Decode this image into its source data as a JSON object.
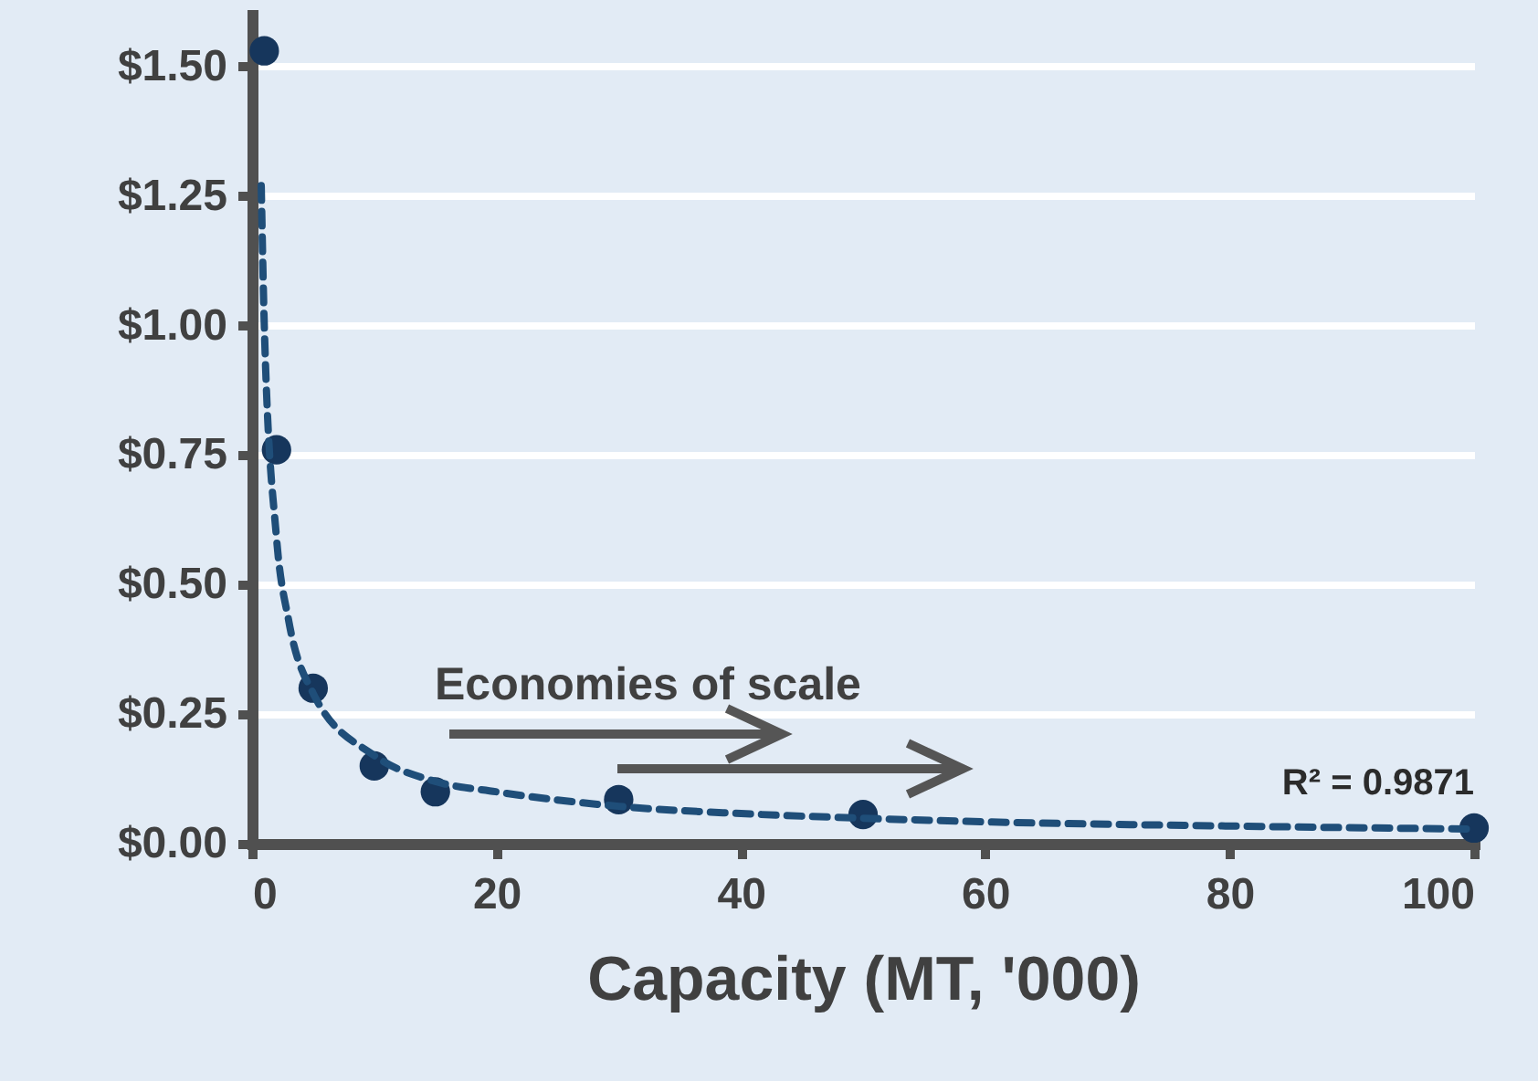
{
  "chart_data": {
    "type": "scatter",
    "xlabel": "Capacity (MT, '000)",
    "marker": "circle",
    "grid": "y",
    "xlim": [
      0,
      100
    ],
    "xticks": [
      0,
      20,
      40,
      60,
      80,
      100
    ],
    "ylim": [
      0,
      1.6
    ],
    "yticks": [
      {
        "value": 0,
        "label": "$0.00"
      },
      {
        "value": 0.25,
        "label": "$0.25"
      },
      {
        "value": 0.5,
        "label": "$0.50"
      },
      {
        "value": 0.75,
        "label": "$0.75"
      },
      {
        "value": 1,
        "label": "$1.00"
      },
      {
        "value": 1.25,
        "label": "$1.25"
      },
      {
        "value": 1.5,
        "label": "$1.50"
      }
    ],
    "x": [
      1,
      2,
      5,
      10,
      15,
      30,
      50,
      100
    ],
    "annotations": [
      "Economies of scale",
      "R² = 0.9871"
    ],
    "series": [
      {
        "color": "#16365c",
        "values": [
          1.53,
          0.76,
          0.3,
          0.15,
          0.1,
          0.085,
          0.056,
          0.03
        ]
      },
      {
        "type": "line",
        "line_style": "dashed",
        "marker": "none",
        "color": "#1f4e79",
        "x": [
          0.75,
          1,
          2,
          3,
          5,
          10,
          15,
          20,
          30,
          40,
          50,
          60,
          80,
          100
        ],
        "values": [
          1.27,
          1.0,
          0.59,
          0.43,
          0.29,
          0.17,
          0.12,
          0.1,
          0.072,
          0.058,
          0.049,
          0.042,
          0.034,
          0.028
        ]
      }
    ]
  }
}
